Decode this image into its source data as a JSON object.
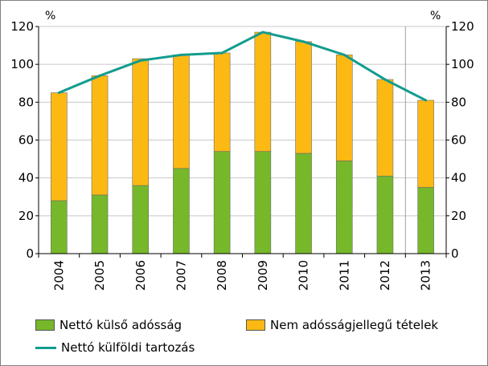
{
  "chart_data": {
    "type": "bar",
    "stacked": true,
    "categories": [
      "2004",
      "2005",
      "2006",
      "2007",
      "2008",
      "2009",
      "2010",
      "2011",
      "2012",
      "2013"
    ],
    "series": [
      {
        "name": "Nettó külső adósság",
        "kind": "bar",
        "color": "#76b82a",
        "values": [
          28,
          31,
          36,
          45,
          54,
          54,
          53,
          49,
          41,
          35
        ]
      },
      {
        "name": "Nem adósságjellegű tételek",
        "kind": "bar",
        "color": "#fdb913",
        "values": [
          57,
          63,
          67,
          60,
          52,
          63,
          59,
          56,
          51,
          46
        ]
      },
      {
        "name": "Nettó külföldi tartozás",
        "kind": "line",
        "color": "#129c8e",
        "values": [
          85,
          94,
          102,
          105,
          106,
          117,
          112,
          105,
          92,
          81
        ]
      }
    ],
    "ylim": [
      0,
      120
    ],
    "yticks": [
      0,
      20,
      40,
      60,
      80,
      100,
      120
    ],
    "y_unit_left": "%",
    "y_unit_right": "%",
    "grid": true,
    "legend_position": "bottom",
    "xlabel": "",
    "ylabel": ""
  }
}
